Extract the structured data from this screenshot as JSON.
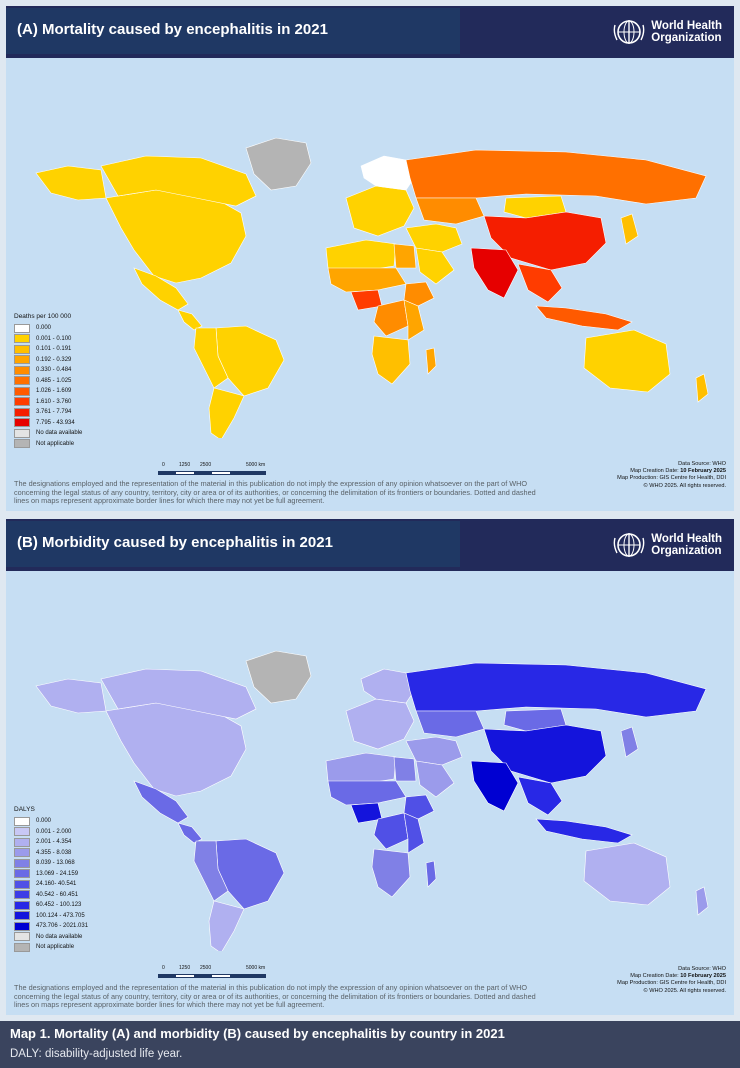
{
  "panels": [
    {
      "title": "(A) Mortality caused by encephalitis in 2021",
      "legend_title": "Deaths per 100 000",
      "legend": [
        {
          "label": "0.000",
          "color": "#ffffff"
        },
        {
          "label": "0.001 - 0.100",
          "color": "#ffd200"
        },
        {
          "label": "0.101 - 0.191",
          "color": "#ffbf00"
        },
        {
          "label": "0.192 - 0.329",
          "color": "#ffa500"
        },
        {
          "label": "0.330 - 0.484",
          "color": "#ff8c00"
        },
        {
          "label": "0.485 - 1.025",
          "color": "#ff7000"
        },
        {
          "label": "1.026 - 1.609",
          "color": "#ff5a00"
        },
        {
          "label": "1.610 - 3.760",
          "color": "#ff3c00"
        },
        {
          "label": "3.761 - 7.794",
          "color": "#f51e00"
        },
        {
          "label": "7.795 - 43.934",
          "color": "#e60000"
        },
        {
          "label": "No data available",
          "color": "#e4e4e4"
        },
        {
          "label": "Not applicable",
          "color": "#b4b4b4"
        }
      ]
    },
    {
      "title": "(B) Morbidity caused by encephalitis in 2021",
      "legend_title": "DALYS",
      "legend": [
        {
          "label": "0.000",
          "color": "#ffffff"
        },
        {
          "label": "0.001 - 2.000",
          "color": "#c8c8f5"
        },
        {
          "label": "2.001 - 4.354",
          "color": "#b0b0f0"
        },
        {
          "label": "4.355 - 8.038",
          "color": "#9b9beb"
        },
        {
          "label": "8.039 - 13.068",
          "color": "#8080e6"
        },
        {
          "label": "13.069 - 24.159",
          "color": "#6a6ae6"
        },
        {
          "label": "24.160- 40.541",
          "color": "#5050e6"
        },
        {
          "label": "40.542 - 60.451",
          "color": "#3c3ce6"
        },
        {
          "label": "60.452 - 100.123",
          "color": "#2828e6"
        },
        {
          "label": "100.124 - 473.705",
          "color": "#1414dc"
        },
        {
          "label": "473.706 - 2021.031",
          "color": "#0000d2"
        },
        {
          "label": "No data available",
          "color": "#e4e4e4"
        },
        {
          "label": "Not applicable",
          "color": "#b4b4b4"
        }
      ]
    }
  ],
  "who_logo": {
    "line1": "World Health",
    "line2": "Organization",
    "icon": "who-emblem-icon"
  },
  "scale_labels": [
    "0",
    "1250",
    "2500",
    "5000 km"
  ],
  "credits": {
    "source": "Data Source: WHO",
    "creation_label": "Map Creation Date: ",
    "creation_date": "10 February 2025",
    "production_label": "Map Production: ",
    "production_value": "GIS Centre for Health, DDI",
    "copyright": "© WHO 2025. All rights reserved."
  },
  "disclaimer": "The designations employed and the representation of the material in this publication do not imply the expression of any opinion whatsoever on the part of WHO concerning the legal status of any country, territory, city or area or of its authorities, or concerning the delimitation of its frontiers or boundaries. Dotted and dashed lines on maps represent approximate border lines for which there may not yet be full agreement.",
  "caption": {
    "title": "Map 1. Mortality (A) and morbidity (B) caused by encephalitis by country  in 2021",
    "subtitle": "DALY: disability-adjusted life year."
  },
  "regions": [
    {
      "name": "north-america",
      "a": 1,
      "b": 2
    },
    {
      "name": "canada",
      "a": 1,
      "b": 2
    },
    {
      "name": "greenland",
      "a": 11,
      "b": 12
    },
    {
      "name": "alaska",
      "a": 1,
      "b": 2
    },
    {
      "name": "mexico",
      "a": 1,
      "b": 5
    },
    {
      "name": "central-america",
      "a": 1,
      "b": 5
    },
    {
      "name": "brazil",
      "a": 1,
      "b": 5
    },
    {
      "name": "andes",
      "a": 1,
      "b": 4
    },
    {
      "name": "southern-cone",
      "a": 1,
      "b": 2
    },
    {
      "name": "europe",
      "a": 1,
      "b": 2
    },
    {
      "name": "scandinavia",
      "a": 0,
      "b": 2
    },
    {
      "name": "russia",
      "a": 5,
      "b": 8
    },
    {
      "name": "kazakhstan",
      "a": 4,
      "b": 5
    },
    {
      "name": "middle-east",
      "a": 1,
      "b": 3
    },
    {
      "name": "arabia",
      "a": 1,
      "b": 3
    },
    {
      "name": "north-africa",
      "a": 1,
      "b": 3
    },
    {
      "name": "egypt",
      "a": 3,
      "b": 4
    },
    {
      "name": "sahel",
      "a": 3,
      "b": 5
    },
    {
      "name": "nigeria",
      "a": 7,
      "b": 9
    },
    {
      "name": "ethiopia",
      "a": 4,
      "b": 6
    },
    {
      "name": "congo",
      "a": 4,
      "b": 6
    },
    {
      "name": "east-africa",
      "a": 3,
      "b": 6
    },
    {
      "name": "southern-africa",
      "a": 2,
      "b": 4
    },
    {
      "name": "madagascar",
      "a": 3,
      "b": 5
    },
    {
      "name": "mongolia",
      "a": 1,
      "b": 5
    },
    {
      "name": "china",
      "a": 8,
      "b": 9
    },
    {
      "name": "india",
      "a": 9,
      "b": 10
    },
    {
      "name": "southeast-asia",
      "a": 7,
      "b": 8
    },
    {
      "name": "indonesia",
      "a": 6,
      "b": 8
    },
    {
      "name": "japan",
      "a": 2,
      "b": 4
    },
    {
      "name": "australia",
      "a": 1,
      "b": 2
    },
    {
      "name": "new-zealand",
      "a": 2,
      "b": 3
    }
  ]
}
